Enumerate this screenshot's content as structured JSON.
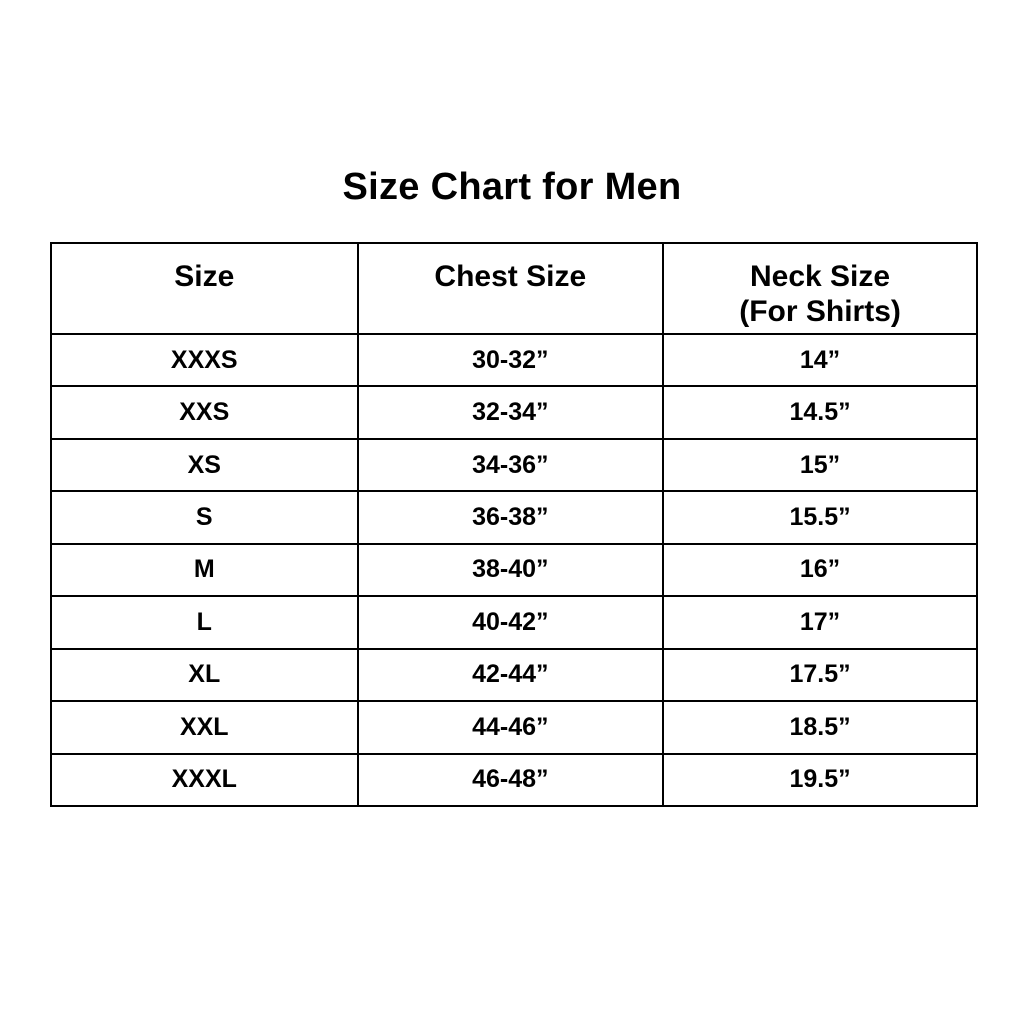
{
  "page": {
    "background_color": "#ffffff",
    "text_color": "#000000",
    "border_color": "#000000"
  },
  "title": "Size Chart for Men",
  "table": {
    "headers": [
      {
        "label": "Size"
      },
      {
        "label": "Chest Size"
      },
      {
        "label": "Neck Size",
        "sublabel": "(For Shirts)"
      }
    ],
    "rows": [
      {
        "size": "XXXS",
        "chest": "30-32”",
        "neck": "14”"
      },
      {
        "size": "XXS",
        "chest": "32-34”",
        "neck": "14.5”"
      },
      {
        "size": "XS",
        "chest": "34-36”",
        "neck": "15”"
      },
      {
        "size": "S",
        "chest": "36-38”",
        "neck": "15.5”"
      },
      {
        "size": "M",
        "chest": "38-40”",
        "neck": "16”"
      },
      {
        "size": "L",
        "chest": "40-42”",
        "neck": "17”"
      },
      {
        "size": "XL",
        "chest": "42-44”",
        "neck": "17.5”"
      },
      {
        "size": "XXL",
        "chest": "44-46”",
        "neck": "18.5”"
      },
      {
        "size": "XXXL",
        "chest": "46-48”",
        "neck": "19.5”"
      }
    ]
  },
  "chart_data": {
    "type": "table",
    "title": "Size Chart for Men",
    "columns": [
      "Size",
      "Chest Size",
      "Neck Size (For Shirts)"
    ],
    "rows": [
      [
        "XXXS",
        "30-32”",
        "14”"
      ],
      [
        "XXS",
        "32-34”",
        "14.5”"
      ],
      [
        "XS",
        "34-36”",
        "15”"
      ],
      [
        "S",
        "36-38”",
        "15.5”"
      ],
      [
        "M",
        "38-40”",
        "16”"
      ],
      [
        "L",
        "40-42”",
        "17”"
      ],
      [
        "XL",
        "42-44”",
        "17.5”"
      ],
      [
        "XXL",
        "44-46”",
        "18.5”"
      ],
      [
        "XXXL",
        "46-48”",
        "19.5”"
      ]
    ],
    "layout": {
      "grid": true,
      "header_row": true,
      "text_alignment": "center"
    }
  }
}
